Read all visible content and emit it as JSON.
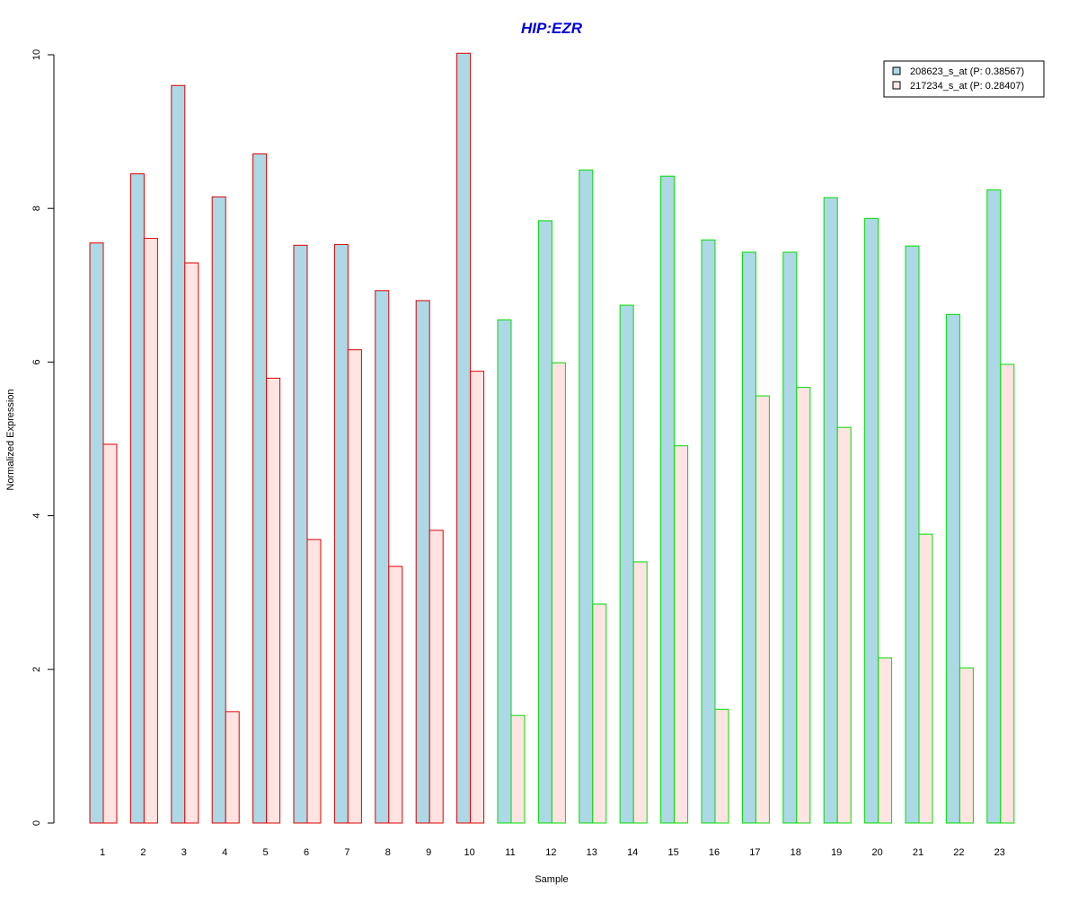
{
  "chart_data": {
    "type": "bar",
    "title": "HIP:EZR",
    "xlabel": "Sample",
    "ylabel": "Normalized Expression",
    "ylim": [
      0,
      10
    ],
    "yticks": [
      0,
      2,
      4,
      6,
      8,
      10
    ],
    "categories": [
      "1",
      "2",
      "3",
      "4",
      "5",
      "6",
      "7",
      "8",
      "9",
      "10",
      "11",
      "12",
      "13",
      "14",
      "15",
      "16",
      "17",
      "18",
      "19",
      "20",
      "21",
      "22",
      "23"
    ],
    "group_border_colors": [
      "#dd0000",
      "#dd0000",
      "#dd0000",
      "#dd0000",
      "#dd0000",
      "#dd0000",
      "#dd0000",
      "#dd0000",
      "#dd0000",
      "#dd0000",
      "#00dd00",
      "#00dd00",
      "#00dd00",
      "#00dd00",
      "#00dd00",
      "#00dd00",
      "#00dd00",
      "#00dd00",
      "#00dd00",
      "#00dd00",
      "#00dd00",
      "#00dd00",
      "#00dd00"
    ],
    "series": [
      {
        "name": "208623_s_at (P: 0.38567)",
        "color": "#add8e6",
        "values": [
          7.55,
          8.45,
          9.6,
          8.15,
          8.71,
          7.52,
          7.53,
          6.93,
          6.8,
          10.02,
          6.55,
          7.84,
          8.5,
          6.74,
          8.42,
          7.59,
          7.43,
          7.43,
          8.14,
          7.87,
          7.51,
          6.62,
          8.24
        ]
      },
      {
        "name": "217234_s_at (P: 0.28407)",
        "color": "#ffe4e1",
        "values": [
          4.93,
          7.61,
          7.29,
          1.45,
          5.79,
          3.69,
          6.16,
          3.34,
          3.81,
          5.88,
          1.4,
          5.99,
          2.85,
          3.4,
          4.91,
          1.48,
          5.56,
          5.67,
          5.15,
          2.15,
          3.76,
          2.02,
          5.97
        ]
      }
    ],
    "legend_position": "top-right",
    "title_color": "#0000dd"
  }
}
